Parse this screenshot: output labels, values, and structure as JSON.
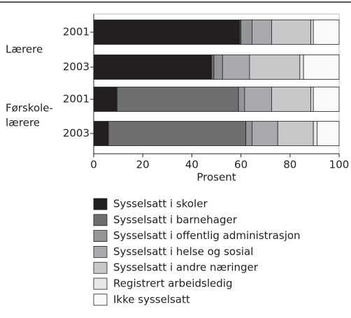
{
  "chart_data": {
    "type": "bar",
    "orientation": "horizontal",
    "stacked": true,
    "categories": [
      "2001",
      "2003",
      "2001",
      "2003"
    ],
    "groups": [
      [
        "Lærere"
      ],
      [
        "Førskole-",
        "lærere"
      ]
    ],
    "xlabel": "Prosent",
    "xlim": [
      0,
      100
    ],
    "xticks": [
      0,
      20,
      40,
      60,
      80,
      100
    ],
    "series": [
      {
        "name": "Sysselsatt i skoler",
        "color": "#231f20",
        "values": [
          59.5,
          48,
          9.5,
          6
        ]
      },
      {
        "name": "Sysselsatt i barnehager",
        "color": "#6d6e70",
        "values": [
          0.5,
          1,
          49.5,
          56
        ]
      },
      {
        "name": "Sysselsatt i offentlig administrasjon",
        "color": "#939598",
        "values": [
          4.5,
          3.5,
          2.5,
          2.5
        ]
      },
      {
        "name": "Sysselsatt i helse og sosial",
        "color": "#a7a9ac",
        "values": [
          8,
          11,
          11,
          10.5
        ]
      },
      {
        "name": "Sysselsatt i andre næringer",
        "color": "#c7c8ca",
        "values": [
          16,
          20.5,
          16,
          14.5
        ]
      },
      {
        "name": "Registrert arbeidsledig",
        "color": "#e6e7e8",
        "values": [
          1,
          1.5,
          1,
          1.5
        ]
      },
      {
        "name": "Ikke sysselsatt",
        "color": "#fafafa",
        "values": [
          10.5,
          14.5,
          10.5,
          9
        ]
      }
    ]
  }
}
